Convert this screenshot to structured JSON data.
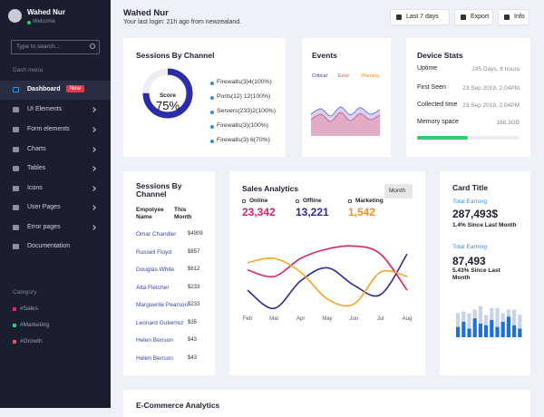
{
  "sidebar": {
    "user": "Wahed Nur",
    "status": "Welcome",
    "search_placeholder": "Type to search...",
    "menu_heading": "Dash menu",
    "menu": [
      {
        "label": "Dashboard",
        "badge": "New",
        "active": true
      },
      {
        "label": "UI Elements",
        "submenu": true
      },
      {
        "label": "Form elements",
        "submenu": true
      },
      {
        "label": "Charts",
        "submenu": true
      },
      {
        "label": "Tables",
        "submenu": true
      },
      {
        "label": "Icons",
        "submenu": true
      },
      {
        "label": "User Pages",
        "submenu": true
      },
      {
        "label": "Error pages",
        "submenu": true
      },
      {
        "label": "Documentation"
      }
    ],
    "category_heading": "Category",
    "categories": [
      {
        "label": "#Sales",
        "color": "#e91e63"
      },
      {
        "label": "#Marketing",
        "color": "#2ecc71"
      },
      {
        "label": "#Growth",
        "color": "#e8505b"
      }
    ]
  },
  "header": {
    "title": "Wahed Nur",
    "subtitle": "Your last login: 21h ago from newzealand.",
    "buttons": [
      "Last 7 days",
      "Export",
      "Info"
    ]
  },
  "sessions_card": {
    "title": "Sessions By Channel",
    "score": {
      "label": "Score",
      "value": 75,
      "value_label": "75%",
      "range": [
        0,
        100
      ],
      "color": "#2c2ca8"
    },
    "items": [
      "Firewalls(3)4(100%)",
      "Ports(12) 12(100%)",
      "Servers(233)2(100%)",
      "Firewalls(3)(100%)",
      "Firewalls(3) 6(70%)"
    ]
  },
  "events_card": {
    "title": "Events",
    "legend": [
      {
        "name": "Critical",
        "color": "#2d3a8c"
      },
      {
        "name": "Error",
        "color": "#e74c3c"
      },
      {
        "name": "Warning",
        "color": "#f39c12"
      }
    ],
    "ylim": [
      0,
      100
    ],
    "series": [
      {
        "color": "#7b6fd6",
        "values": [
          60,
          75,
          55,
          80,
          58,
          78,
          60,
          72
        ]
      },
      {
        "color": "#e05b7a",
        "values": [
          45,
          60,
          40,
          65,
          42,
          62,
          45,
          58
        ]
      },
      {
        "color": "#f2a5b3",
        "values": [
          30,
          45,
          28,
          50,
          30,
          48,
          32,
          42
        ]
      }
    ]
  },
  "device_card": {
    "title": "Device Stats",
    "rows": [
      {
        "label": "Uptime",
        "value": "195 Days, 8 hours"
      },
      {
        "label": "First Seen",
        "value": "23 Sep 2019, 2.04PM"
      },
      {
        "label": "Collected time",
        "value": "23 Sep 2019, 2.04PM"
      },
      {
        "label": "Memory space",
        "value": "168.3GB"
      }
    ],
    "memory_bar": {
      "value": 50,
      "range": [
        0,
        100
      ],
      "color": "#2ecc71"
    }
  },
  "employee_card": {
    "title": "Sessions By Channel",
    "columns": [
      "Empolyee Name",
      "This Month"
    ],
    "rows": [
      [
        "Omar Chandler",
        "$4909"
      ],
      [
        "Russell Floyd",
        "$857"
      ],
      [
        "Douglas White",
        "$612"
      ],
      [
        "Alta Fletcher",
        "$233"
      ],
      [
        "Marguerite Pearson",
        "$233"
      ],
      [
        "Leonard Gutierrez",
        "$35"
      ],
      [
        "Helen Benson",
        "$43"
      ],
      [
        "Helen Benson",
        "$43"
      ]
    ]
  },
  "sales_card": {
    "title": "Sales Analytics",
    "button": "Month",
    "stats": [
      {
        "label": "Online",
        "value": "23,342",
        "color": "#d6246e"
      },
      {
        "label": "Offline",
        "value": "13,221",
        "color": "#2d2a9a"
      },
      {
        "label": "Marketing",
        "value": "1,542",
        "color": "#f0921e"
      }
    ],
    "categories": [
      "Feb",
      "Mar",
      "Apr",
      "May",
      "Jun",
      "Jul",
      "Aug"
    ],
    "ylim": [
      0,
      100
    ],
    "series": [
      {
        "color": "#d6246e",
        "values": [
          59,
          50,
          75,
          88,
          92,
          81,
          31
        ]
      },
      {
        "color": "#2d2a9a",
        "values": [
          31,
          6,
          44,
          62,
          38,
          25,
          81
        ]
      },
      {
        "color": "#f5a623",
        "values": [
          69,
          75,
          56,
          19,
          12,
          56,
          50
        ]
      }
    ]
  },
  "earning_card": {
    "title": "Card Title",
    "metrics": [
      {
        "label": "Total Earning",
        "value": "287,493$",
        "change": "1.4% Since Last Month"
      },
      {
        "label": "Total Earning",
        "value": "87,493",
        "change": "5.43% Since Last Month"
      }
    ],
    "ylim": [
      0,
      100
    ],
    "bars": [
      {
        "color": "#1e6fe0",
        "values": [
          30,
          45,
          25,
          55,
          40,
          35,
          50,
          30,
          45,
          60,
          35,
          25
        ]
      },
      {
        "color": "#c8d3e8",
        "values": [
          40,
          30,
          45,
          25,
          50,
          30,
          35,
          55,
          25,
          20,
          45,
          40
        ]
      }
    ]
  },
  "ecommerce_card": {
    "title": "E-Commerce Analytics"
  }
}
